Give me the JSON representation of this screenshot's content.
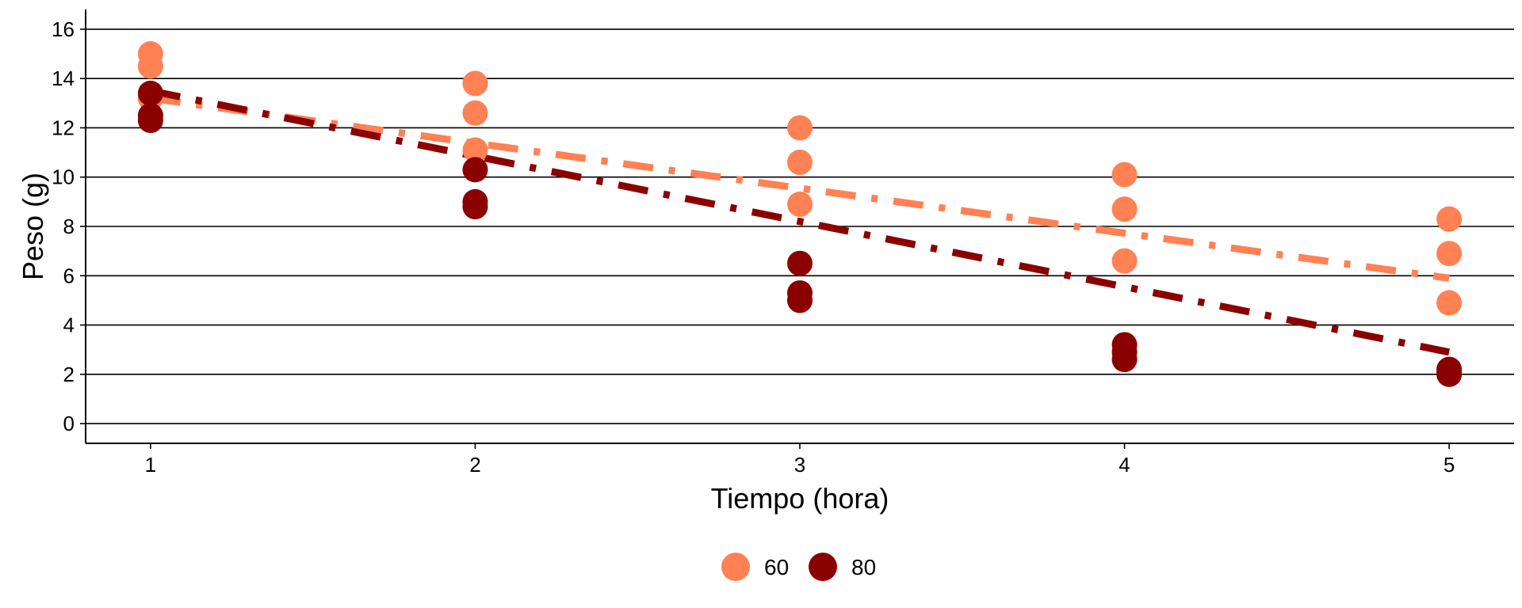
{
  "chart_data": {
    "type": "scatter",
    "title": "",
    "xlabel": "Tiempo (hora)",
    "ylabel": "Peso (g)",
    "xlim": [
      0.8,
      5.2
    ],
    "ylim": [
      -0.8,
      16.8
    ],
    "x_ticks": [
      1,
      2,
      3,
      4,
      5
    ],
    "y_ticks": [
      0,
      2,
      4,
      6,
      8,
      10,
      12,
      14,
      16
    ],
    "x_tick_labels": [
      "1",
      "2",
      "3",
      "4",
      "5"
    ],
    "y_tick_labels": [
      "0",
      "2",
      "4",
      "6",
      "8",
      "10",
      "12",
      "14",
      "16"
    ],
    "grid": "horizontal major lines",
    "legend_position": "bottom",
    "series": [
      {
        "name": "60",
        "color": "#FF8154",
        "points": [
          [
            1,
            15.0
          ],
          [
            1,
            14.5
          ],
          [
            1,
            13.2
          ],
          [
            2,
            13.8
          ],
          [
            2,
            12.6
          ],
          [
            2,
            11.1
          ],
          [
            3,
            12.0
          ],
          [
            3,
            10.6
          ],
          [
            3,
            8.9
          ],
          [
            4,
            10.1
          ],
          [
            4,
            8.7
          ],
          [
            4,
            6.6
          ],
          [
            5,
            8.3
          ],
          [
            5,
            6.9
          ],
          [
            5,
            4.9
          ]
        ],
        "trend": {
          "x": [
            1,
            5
          ],
          "y": [
            13.2,
            5.9
          ],
          "style": "dot-dash"
        }
      },
      {
        "name": "80",
        "color": "#8B0000",
        "points": [
          [
            1,
            13.4
          ],
          [
            1,
            12.5
          ],
          [
            1,
            12.3
          ],
          [
            2,
            10.3
          ],
          [
            2,
            9.0
          ],
          [
            2,
            8.8
          ],
          [
            3,
            6.5
          ],
          [
            3,
            5.3
          ],
          [
            3,
            5.0
          ],
          [
            4,
            3.2
          ],
          [
            4,
            2.9
          ],
          [
            4,
            2.6
          ],
          [
            5,
            2.2
          ],
          [
            5,
            2.0
          ],
          [
            5,
            2.1
          ]
        ],
        "trend": {
          "x": [
            1,
            5
          ],
          "y": [
            13.5,
            2.9
          ],
          "style": "dot-dash"
        }
      }
    ]
  }
}
